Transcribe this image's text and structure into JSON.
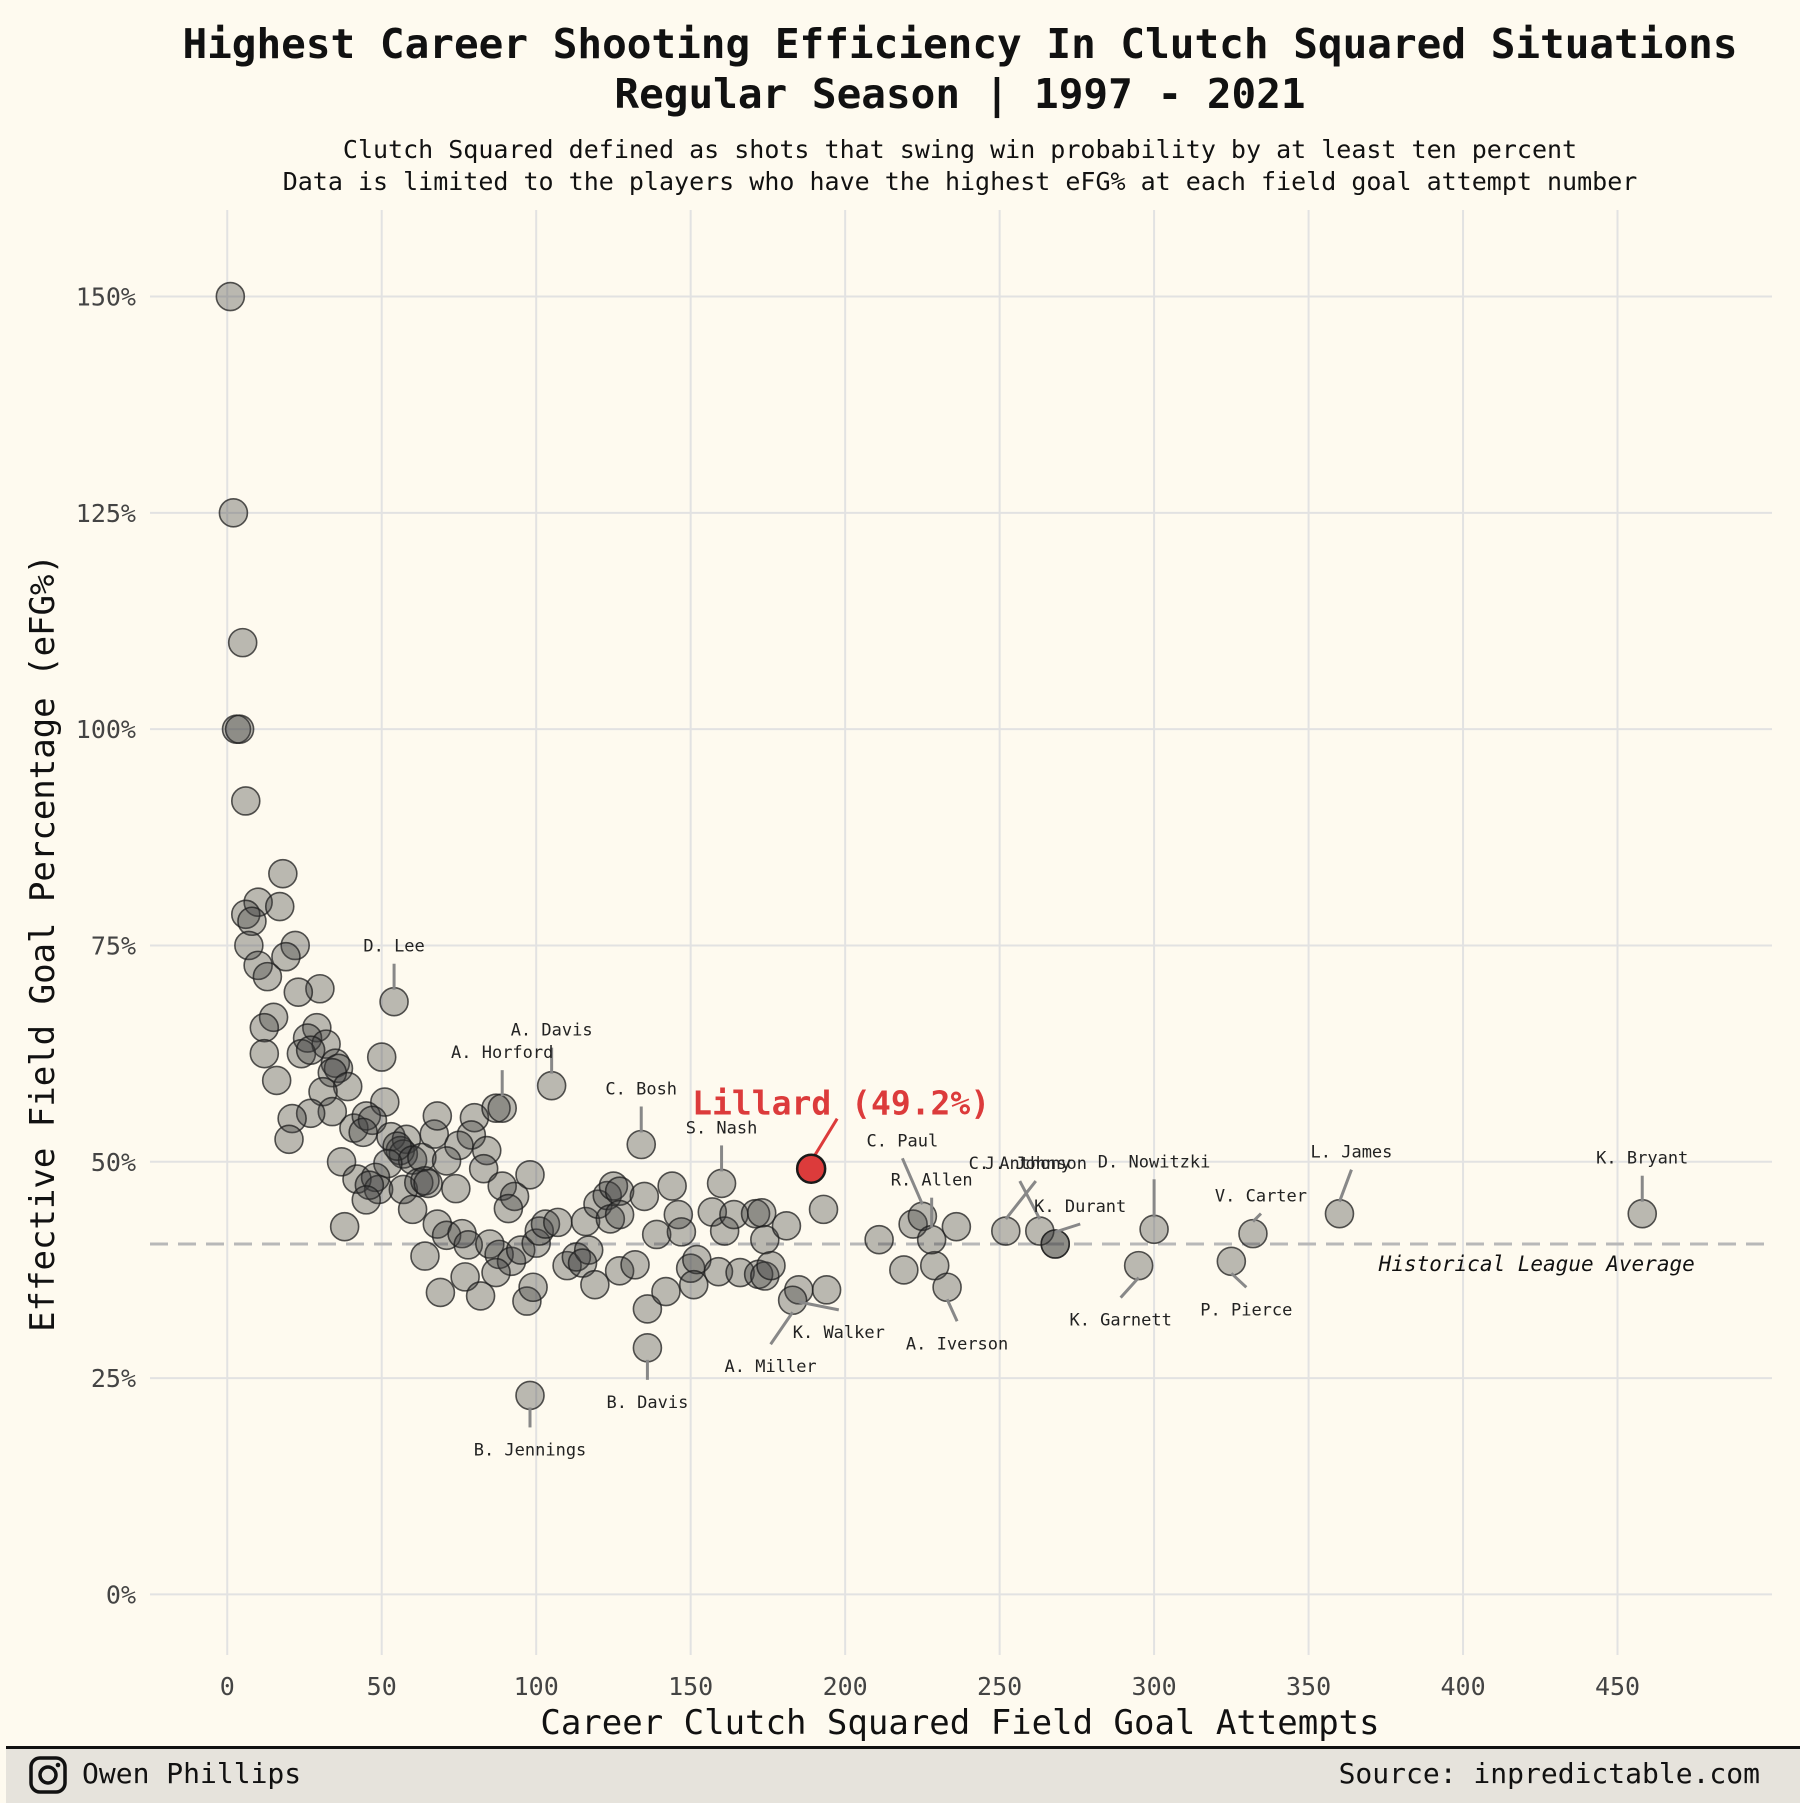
{
  "chart_data": {
    "type": "scatter",
    "title_lines": [
      "Highest Career Shooting Efficiency In Clutch Squared Situations",
      "Regular Season | 1997 - 2021"
    ],
    "subtitle_lines": [
      "Clutch Squared defined as shots that swing win probability by at least ten percent",
      "Data is limited to the players who have the highest eFG% at each field goal attempt number"
    ],
    "xlabel": "Career Clutch Squared Field Goal Attempts",
    "ylabel": "Effective Field Goal Percentage (eFG%)",
    "xlim": [
      -25,
      500
    ],
    "ylim": [
      -7,
      160
    ],
    "x_ticks": [
      0,
      50,
      100,
      150,
      200,
      250,
      300,
      350,
      400,
      450
    ],
    "x_tick_labels": [
      "0",
      "50",
      "100",
      "150",
      "200",
      "250",
      "300",
      "350",
      "400",
      "450"
    ],
    "y_ticks": [
      0,
      25,
      50,
      75,
      100,
      125,
      150
    ],
    "y_tick_labels": [
      "0%",
      "25%",
      "50%",
      "75%",
      "100%",
      "125%",
      "150%"
    ],
    "grid": true,
    "reference_line": {
      "y": 40.5,
      "label": "Historical League Average"
    },
    "highlight": {
      "x": 189,
      "y": 49.2,
      "label": "Lillard (49.2%)",
      "color": "#dc3b3b"
    },
    "labeled_points": [
      {
        "name": "D. Lee",
        "x": 54,
        "y": 68.5
      },
      {
        "name": "A. Davis",
        "x": 105,
        "y": 58.8
      },
      {
        "name": "A. Horford",
        "x": 89,
        "y": 56.2
      },
      {
        "name": "C. Bosh",
        "x": 134,
        "y": 52.0
      },
      {
        "name": "S. Nash",
        "x": 160,
        "y": 47.5
      },
      {
        "name": "C. Paul",
        "x": 225,
        "y": 43.7
      },
      {
        "name": "R. Allen",
        "x": 228,
        "y": 41.0
      },
      {
        "name": "J. Johnson",
        "x": 252,
        "y": 42.0
      },
      {
        "name": "C. Anthony",
        "x": 263,
        "y": 42.0
      },
      {
        "name": "K. Durant",
        "x": 268,
        "y": 40.5
      },
      {
        "name": "D. Nowitzki",
        "x": 300,
        "y": 42.2
      },
      {
        "name": "L. James",
        "x": 360,
        "y": 44.0
      },
      {
        "name": "V. Carter",
        "x": 332,
        "y": 41.7
      },
      {
        "name": "K. Bryant",
        "x": 458,
        "y": 44.0
      },
      {
        "name": "K. Garnett",
        "x": 295,
        "y": 38.0
      },
      {
        "name": "P. Pierce",
        "x": 325,
        "y": 38.5
      },
      {
        "name": "A. Iverson",
        "x": 233,
        "y": 35.5
      },
      {
        "name": "K. Walker",
        "x": 185,
        "y": 35.2
      },
      {
        "name": "A. Miller",
        "x": 183,
        "y": 34.0
      },
      {
        "name": "B. Davis",
        "x": 136,
        "y": 28.5
      },
      {
        "name": "B. Jennings",
        "x": 98,
        "y": 23.0
      }
    ],
    "points": [
      [
        1,
        150
      ],
      [
        2,
        125
      ],
      [
        5,
        110
      ],
      [
        3,
        100
      ],
      [
        4,
        100
      ],
      [
        6,
        91.7
      ],
      [
        18,
        83.3
      ],
      [
        10,
        80
      ],
      [
        6,
        78.6
      ],
      [
        8,
        77.8
      ],
      [
        17,
        79.5
      ],
      [
        22,
        75
      ],
      [
        7,
        75
      ],
      [
        19,
        73.7
      ],
      [
        10,
        72.7
      ],
      [
        13,
        71.4
      ],
      [
        30,
        70
      ],
      [
        23,
        69.6
      ],
      [
        15,
        66.7
      ],
      [
        12,
        65.5
      ],
      [
        29,
        65.5
      ],
      [
        26,
        64.3
      ],
      [
        32,
        63.6
      ],
      [
        24,
        62.5
      ],
      [
        12,
        62.5
      ],
      [
        27,
        62.9
      ],
      [
        35,
        61.4
      ],
      [
        36,
        60.8
      ],
      [
        34,
        60.3
      ],
      [
        16,
        59.4
      ],
      [
        39,
        58.7
      ],
      [
        31,
        58.1
      ],
      [
        50,
        62.1
      ],
      [
        51,
        56.9
      ],
      [
        34,
        55.8
      ],
      [
        27,
        55.6
      ],
      [
        21,
        55
      ],
      [
        41,
        53.9
      ],
      [
        20,
        52.6
      ],
      [
        45,
        55.3
      ],
      [
        47,
        54.8
      ],
      [
        44,
        53.4
      ],
      [
        53,
        52.9
      ],
      [
        58,
        52.6
      ],
      [
        56,
        51.3
      ],
      [
        37,
        50
      ],
      [
        57,
        50.9
      ],
      [
        55,
        51.8
      ],
      [
        60,
        50.2
      ],
      [
        52,
        49.8
      ],
      [
        63,
        50.5
      ],
      [
        67,
        53.2
      ],
      [
        68,
        55.3
      ],
      [
        80,
        55.1
      ],
      [
        79,
        53.1
      ],
      [
        75,
        51.9
      ],
      [
        71,
        50.1
      ],
      [
        84,
        51.3
      ],
      [
        87,
        56.2
      ],
      [
        98,
        48.5
      ],
      [
        42,
        48
      ],
      [
        48,
        48.2
      ],
      [
        49,
        46.8
      ],
      [
        46,
        47.3
      ],
      [
        45,
        45.6
      ],
      [
        38,
        42.5
      ],
      [
        57,
        46.8
      ],
      [
        62,
        47.6
      ],
      [
        64,
        47.8
      ],
      [
        60,
        44.5
      ],
      [
        65,
        47.5
      ],
      [
        74,
        46.9
      ],
      [
        83,
        49.2
      ],
      [
        89,
        47.2
      ],
      [
        93,
        46
      ],
      [
        91,
        44.6
      ],
      [
        68,
        42.8
      ],
      [
        71,
        41.5
      ],
      [
        76,
        41.7
      ],
      [
        78,
        40.4
      ],
      [
        85,
        40.5
      ],
      [
        88,
        39.3
      ],
      [
        92,
        38.5
      ],
      [
        95,
        39.8
      ],
      [
        100,
        40.6
      ],
      [
        101,
        42
      ],
      [
        103,
        42.8
      ],
      [
        107,
        43
      ],
      [
        110,
        38
      ],
      [
        113,
        39
      ],
      [
        117,
        39.8
      ],
      [
        116,
        43.1
      ],
      [
        120,
        45.1
      ],
      [
        123,
        46.1
      ],
      [
        125,
        47.2
      ],
      [
        127,
        46.6
      ],
      [
        124,
        43.4
      ],
      [
        127,
        43.9
      ],
      [
        64,
        39.1
      ],
      [
        69,
        34.9
      ],
      [
        77,
        36.7
      ],
      [
        82,
        34.5
      ],
      [
        87,
        37.2
      ],
      [
        97,
        33.9
      ],
      [
        99,
        35.5
      ],
      [
        115,
        38.3
      ],
      [
        119,
        35.8
      ],
      [
        127,
        37.4
      ],
      [
        132,
        38.1
      ],
      [
        135,
        46
      ],
      [
        136,
        33
      ],
      [
        139,
        41.6
      ],
      [
        142,
        35
      ],
      [
        144,
        47.2
      ],
      [
        146,
        43.9
      ],
      [
        147,
        41.9
      ],
      [
        150,
        37.7
      ],
      [
        152,
        38.7
      ],
      [
        151,
        35.8
      ],
      [
        157,
        44.2
      ],
      [
        159,
        37.3
      ],
      [
        161,
        42
      ],
      [
        164,
        43.9
      ],
      [
        166,
        37.2
      ],
      [
        171,
        44
      ],
      [
        172,
        37
      ],
      [
        174,
        36.8
      ],
      [
        173,
        44.1
      ],
      [
        174,
        41
      ],
      [
        176,
        38
      ],
      [
        181,
        42.6
      ],
      [
        193,
        44.5
      ],
      [
        194,
        35.2
      ],
      [
        211,
        41
      ],
      [
        219,
        37.5
      ],
      [
        222,
        42.8
      ],
      [
        229,
        38
      ],
      [
        236,
        42.5
      ],
      [
        268,
        40.5
      ]
    ]
  },
  "footer": {
    "author": "Owen Phillips",
    "source": "Source: inpredictable.com",
    "icon": "instagram-icon"
  }
}
